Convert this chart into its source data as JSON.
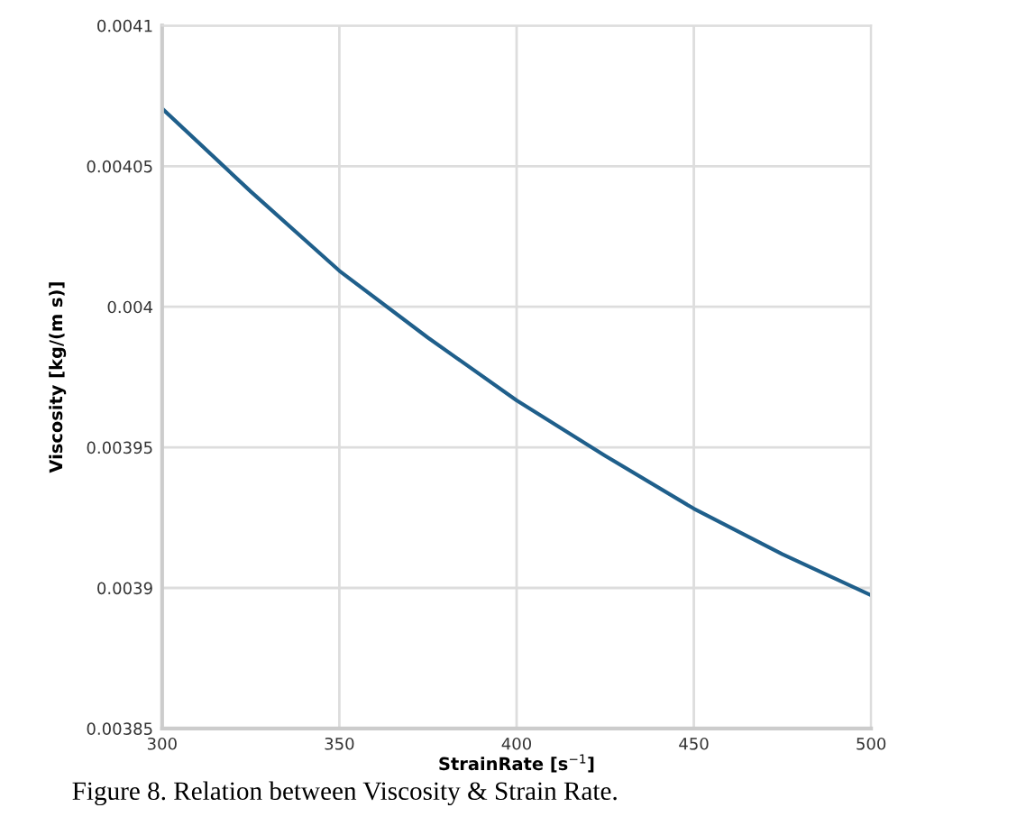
{
  "chart_data": {
    "type": "line",
    "xlabel": "StrainRate [s$^{−1}$]",
    "ylabel": "Viscosity [kg/(m s)]",
    "x": [
      300,
      325,
      350,
      375,
      400,
      425,
      450,
      475,
      500
    ],
    "series": [
      {
        "color": "#1f5f8b",
        "values": [
          0.0040705,
          0.004041,
          0.0040128,
          0.003989,
          0.0039667,
          0.003947,
          0.0039282,
          0.003912,
          0.0038974
        ]
      }
    ],
    "xlim": [
      300,
      500
    ],
    "xticks": [
      300,
      350,
      400,
      450,
      500
    ],
    "ylim": [
      0.00385,
      0.0041
    ],
    "yticks": [
      0.00385,
      0.0039,
      0.00395,
      0.004,
      0.00405,
      0.0041
    ],
    "grid": true,
    "legend": false,
    "marker": "none",
    "line_style": "solid",
    "annotations": [
      "Figure 8. Relation between Viscosity & Strain Rate."
    ]
  }
}
